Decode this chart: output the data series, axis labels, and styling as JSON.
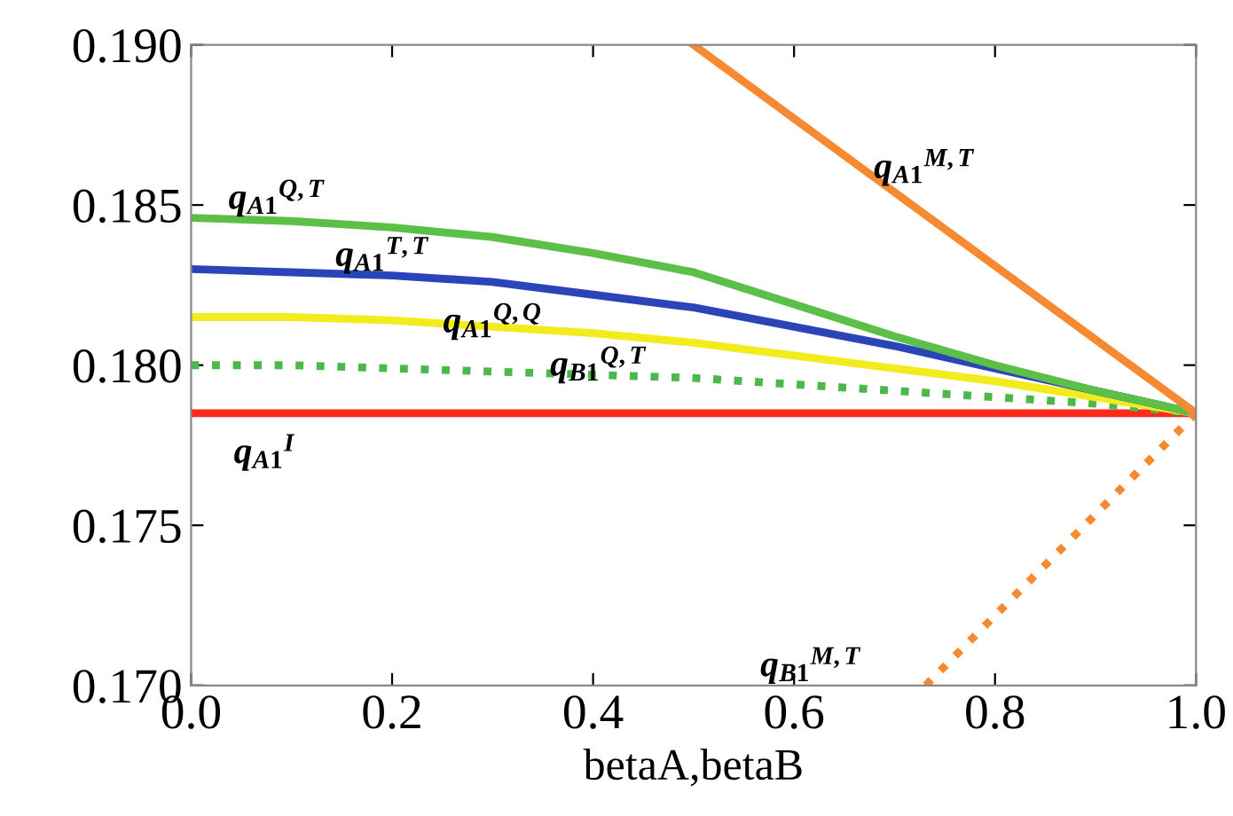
{
  "chart_data": {
    "type": "line",
    "xlabel": "betaA,betaB",
    "xlim": [
      0,
      1
    ],
    "ylim": [
      0.17,
      0.19
    ],
    "xticks": [
      {
        "value": 0,
        "label": "0.0"
      },
      {
        "value": 0.2,
        "label": "0.2"
      },
      {
        "value": 0.4,
        "label": "0.4"
      },
      {
        "value": 0.6,
        "label": "0.6"
      },
      {
        "value": 0.8,
        "label": "0.8"
      },
      {
        "value": 1,
        "label": "1.0"
      }
    ],
    "yticks": [
      {
        "value": 0.17,
        "label": "0.170"
      },
      {
        "value": 0.175,
        "label": "0.175"
      },
      {
        "value": 0.18,
        "label": "0.180"
      },
      {
        "value": 0.185,
        "label": "0.185"
      },
      {
        "value": 0.19,
        "label": "0.190"
      }
    ],
    "grid": false,
    "legend": false,
    "marker": "none",
    "series": [
      {
        "name": "q$_{A1}$$^{I}$",
        "color": "#ff2a1a",
        "line_style": "solid",
        "x": [
          0,
          1
        ],
        "values": [
          0.1785,
          0.1785
        ]
      },
      {
        "name": "q$_{B1}$$^{Q,T}$",
        "color": "#4cb84a",
        "line_style": "dotted",
        "x": [
          0,
          0.1,
          0.2,
          0.3,
          0.4,
          0.5,
          0.6,
          0.7,
          0.8,
          0.9,
          1
        ],
        "values": [
          0.18,
          0.18,
          0.1799,
          0.1798,
          0.1797,
          0.1796,
          0.1794,
          0.1792,
          0.179,
          0.1788,
          0.1785
        ]
      },
      {
        "name": "q$_{A1}$$^{Q,Q}$",
        "color": "#f2ec1e",
        "line_style": "solid",
        "x": [
          0,
          0.1,
          0.2,
          0.3,
          0.4,
          0.5,
          0.6,
          0.7,
          0.8,
          0.9,
          1
        ],
        "values": [
          0.1815,
          0.1815,
          0.1814,
          0.1812,
          0.181,
          0.1807,
          0.1803,
          0.1799,
          0.1795,
          0.179,
          0.1785
        ]
      },
      {
        "name": "q$_{A1}$$^{T,T}$",
        "color": "#2a45b8",
        "line_style": "solid",
        "x": [
          0,
          0.1,
          0.2,
          0.3,
          0.4,
          0.5,
          0.6,
          0.7,
          0.8,
          0.9,
          1
        ],
        "values": [
          0.183,
          0.1829,
          0.1828,
          0.1826,
          0.1822,
          0.1818,
          0.1812,
          0.1806,
          0.1799,
          0.1792,
          0.1785
        ]
      },
      {
        "name": "q$_{A1}$$^{Q,T}$",
        "color": "#5cbf47",
        "line_style": "solid",
        "x": [
          0,
          0.1,
          0.2,
          0.3,
          0.4,
          0.5,
          0.6,
          0.7,
          0.8,
          0.9,
          1
        ],
        "values": [
          0.1846,
          0.1845,
          0.1843,
          0.184,
          0.1835,
          0.1829,
          0.1819,
          0.1809,
          0.18,
          0.1792,
          0.1785
        ]
      },
      {
        "name": "q$_{A1}$$^{M,T}$",
        "color": "#f58a33",
        "line_style": "solid",
        "x": [
          0.5,
          1
        ],
        "values": [
          0.19,
          0.1785
        ]
      },
      {
        "name": "q$_{B1}$$^{M,T}$",
        "color": "#f58a33",
        "line_style": "dotted",
        "x": [
          0.731,
          1
        ],
        "values": [
          0.17,
          0.1785
        ]
      }
    ]
  }
}
